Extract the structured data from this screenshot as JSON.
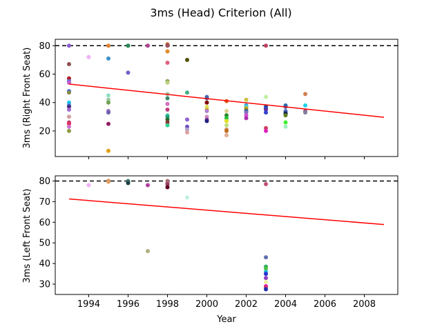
{
  "chart_data": {
    "type": "scatter",
    "title": "3ms (Head) Criterion (All)",
    "xlabel": "Year",
    "x_ticks": [
      1994,
      1996,
      1998,
      2000,
      2002,
      2004,
      2006,
      2008
    ],
    "subplots": [
      {
        "ylabel": "3ms (Right Front Seat)",
        "xlim": [
          1992.3,
          2009.7
        ],
        "ylim": [
          2,
          84.5
        ],
        "y_ticks": [
          20,
          40,
          60,
          80
        ],
        "reference_line": {
          "y": 80,
          "style": "dashed",
          "color": "#000000"
        },
        "trend_line": {
          "x": [
            1993,
            2009
          ],
          "y": [
            53,
            29.6
          ],
          "color": "#ff0000"
        },
        "points": [
          {
            "x": 1993,
            "y": 80,
            "c": "#8a5cd0"
          },
          {
            "x": 1993,
            "y": 67,
            "c": "#8b4f4f"
          },
          {
            "x": 1993,
            "y": 57,
            "c": "#b0202a"
          },
          {
            "x": 1993,
            "y": 55,
            "c": "#5a6ad8"
          },
          {
            "x": 1993,
            "y": 54,
            "c": "#c25fd1"
          },
          {
            "x": 1993,
            "y": 48,
            "c": "#2f6ad6"
          },
          {
            "x": 1993,
            "y": 47,
            "c": "#8a8a4a"
          },
          {
            "x": 1993,
            "y": 40,
            "c": "#21c2ee"
          },
          {
            "x": 1993,
            "y": 38,
            "c": "#3c7bd1"
          },
          {
            "x": 1993,
            "y": 37,
            "c": "#4a2a7a"
          },
          {
            "x": 1993,
            "y": 35,
            "c": "#a06ad0"
          },
          {
            "x": 1993,
            "y": 30,
            "c": "#d0a0a0"
          },
          {
            "x": 1993,
            "y": 26,
            "c": "#b93c6a"
          },
          {
            "x": 1993,
            "y": 25,
            "c": "#e03060"
          },
          {
            "x": 1993,
            "y": 23,
            "c": "#d070d0"
          },
          {
            "x": 1993,
            "y": 20,
            "c": "#8a9a40"
          },
          {
            "x": 1994,
            "y": 72,
            "c": "#f0b0f8"
          },
          {
            "x": 1995,
            "y": 80,
            "c": "#e08030"
          },
          {
            "x": 1995,
            "y": 71,
            "c": "#3a90c8"
          },
          {
            "x": 1995,
            "y": 45,
            "c": "#90e0c0"
          },
          {
            "x": 1995,
            "y": 42,
            "c": "#a0c8a0"
          },
          {
            "x": 1995,
            "y": 40,
            "c": "#70a050"
          },
          {
            "x": 1995,
            "y": 34,
            "c": "#9070c0"
          },
          {
            "x": 1995,
            "y": 33,
            "c": "#7060b0"
          },
          {
            "x": 1995,
            "y": 25,
            "c": "#902060"
          },
          {
            "x": 1995,
            "y": 6,
            "c": "#e0a010"
          },
          {
            "x": 1996,
            "y": 80,
            "c": "#3a6a3a"
          },
          {
            "x": 1996,
            "y": 80,
            "c": "#2a8a5a"
          },
          {
            "x": 1996,
            "y": 61,
            "c": "#7060c8"
          },
          {
            "x": 1997,
            "y": 80,
            "c": "#b04090"
          },
          {
            "x": 1998,
            "y": 81,
            "c": "#c06030"
          },
          {
            "x": 1998,
            "y": 80,
            "c": "#a05060"
          },
          {
            "x": 1998,
            "y": 76,
            "c": "#e08a2a"
          },
          {
            "x": 1998,
            "y": 68,
            "c": "#e06080"
          },
          {
            "x": 1998,
            "y": 55,
            "c": "#80a050"
          },
          {
            "x": 1998,
            "y": 54,
            "c": "#c0d080"
          },
          {
            "x": 1998,
            "y": 46,
            "c": "#a0c0a0"
          },
          {
            "x": 1998,
            "y": 43,
            "c": "#3a8a6a"
          },
          {
            "x": 1998,
            "y": 39,
            "c": "#d070c0"
          },
          {
            "x": 1998,
            "y": 35,
            "c": "#c04080"
          },
          {
            "x": 1998,
            "y": 31,
            "c": "#50d0a0"
          },
          {
            "x": 1998,
            "y": 30,
            "c": "#20a080"
          },
          {
            "x": 1998,
            "y": 28,
            "c": "#2a6a2a"
          },
          {
            "x": 1998,
            "y": 26,
            "c": "#903030"
          },
          {
            "x": 1998,
            "y": 24,
            "c": "#30d090"
          },
          {
            "x": 1999,
            "y": 70,
            "c": "#505000"
          },
          {
            "x": 1999,
            "y": 47,
            "c": "#40b080"
          },
          {
            "x": 1999,
            "y": 28,
            "c": "#9060d0"
          },
          {
            "x": 1999,
            "y": 23,
            "c": "#7050c0"
          },
          {
            "x": 1999,
            "y": 21,
            "c": "#b0a0d0"
          },
          {
            "x": 1999,
            "y": 19,
            "c": "#e0a0a0"
          },
          {
            "x": 2000,
            "y": 44,
            "c": "#5070c0"
          },
          {
            "x": 2000,
            "y": 43,
            "c": "#4060a0"
          },
          {
            "x": 2000,
            "y": 40,
            "c": "#800000"
          },
          {
            "x": 2000,
            "y": 37,
            "c": "#e0e060"
          },
          {
            "x": 2000,
            "y": 35,
            "c": "#d0b020"
          },
          {
            "x": 2000,
            "y": 34,
            "c": "#b080d0"
          },
          {
            "x": 2000,
            "y": 30,
            "c": "#d090c0"
          },
          {
            "x": 2000,
            "y": 28,
            "c": "#9040a0"
          },
          {
            "x": 2000,
            "y": 27,
            "c": "#202080"
          },
          {
            "x": 2001,
            "y": 41,
            "c": "#e06020"
          },
          {
            "x": 2001,
            "y": 34,
            "c": "#e0d090"
          },
          {
            "x": 2001,
            "y": 31,
            "c": "#2a8a2a"
          },
          {
            "x": 2001,
            "y": 29,
            "c": "#20c040"
          },
          {
            "x": 2001,
            "y": 27,
            "c": "#e0e020"
          },
          {
            "x": 2001,
            "y": 24,
            "c": "#c0e080"
          },
          {
            "x": 2001,
            "y": 21,
            "c": "#d09060"
          },
          {
            "x": 2001,
            "y": 20,
            "c": "#c07020"
          },
          {
            "x": 2001,
            "y": 17,
            "c": "#e0b090"
          },
          {
            "x": 2002,
            "y": 42,
            "c": "#d0c040"
          },
          {
            "x": 2002,
            "y": 38,
            "c": "#30a0d0"
          },
          {
            "x": 2002,
            "y": 37,
            "c": "#50d0e0"
          },
          {
            "x": 2002,
            "y": 36,
            "c": "#c0b020"
          },
          {
            "x": 2002,
            "y": 35,
            "c": "#a09010"
          },
          {
            "x": 2002,
            "y": 34,
            "c": "#3060a0"
          },
          {
            "x": 2002,
            "y": 33,
            "c": "#8070c0"
          },
          {
            "x": 2002,
            "y": 31,
            "c": "#d050d0"
          },
          {
            "x": 2002,
            "y": 29,
            "c": "#b030b0"
          },
          {
            "x": 2003,
            "y": 80,
            "c": "#c04060"
          },
          {
            "x": 2003,
            "y": 44,
            "c": "#c0f0a0"
          },
          {
            "x": 2003,
            "y": 37,
            "c": "#204080"
          },
          {
            "x": 2003,
            "y": 36,
            "c": "#2050d0"
          },
          {
            "x": 2003,
            "y": 35,
            "c": "#6030a0"
          },
          {
            "x": 2003,
            "y": 33,
            "c": "#3040d0"
          },
          {
            "x": 2003,
            "y": 22,
            "c": "#d04060"
          },
          {
            "x": 2003,
            "y": 20,
            "c": "#e020c0"
          },
          {
            "x": 2004,
            "y": 38,
            "c": "#2070c0"
          },
          {
            "x": 2004,
            "y": 37,
            "c": "#4060a0"
          },
          {
            "x": 2004,
            "y": 34,
            "c": "#6070c0"
          },
          {
            "x": 2004,
            "y": 33,
            "c": "#3050a0"
          },
          {
            "x": 2004,
            "y": 32,
            "c": "#102040"
          },
          {
            "x": 2004,
            "y": 31,
            "c": "#608020"
          },
          {
            "x": 2004,
            "y": 26,
            "c": "#40f030"
          },
          {
            "x": 2004,
            "y": 23,
            "c": "#a0f0c0"
          },
          {
            "x": 2005,
            "y": 46,
            "c": "#d08050"
          },
          {
            "x": 2005,
            "y": 38,
            "c": "#20d0f0"
          },
          {
            "x": 2005,
            "y": 34,
            "c": "#a05080"
          },
          {
            "x": 2005,
            "y": 33,
            "c": "#8080a0"
          }
        ]
      },
      {
        "ylabel": "3ms (Left Front Seat)",
        "xlim": [
          1992.3,
          2009.7
        ],
        "ylim": [
          25,
          82.5
        ],
        "y_ticks": [
          30,
          40,
          50,
          60,
          70,
          80
        ],
        "reference_line": {
          "y": 80,
          "style": "dashed",
          "color": "#000000"
        },
        "trend_line": {
          "x": [
            1993,
            2009
          ],
          "y": [
            71.3,
            58.9
          ],
          "color": "#ff0000"
        },
        "points": [
          {
            "x": 1994,
            "y": 78,
            "c": "#f0b0f8"
          },
          {
            "x": 1995,
            "y": 80,
            "c": "#c07040"
          },
          {
            "x": 1995,
            "y": 79.6,
            "c": "#e0a060"
          },
          {
            "x": 1996,
            "y": 80,
            "c": "#2a8a5a"
          },
          {
            "x": 1996,
            "y": 79.5,
            "c": "#4a6a8a"
          },
          {
            "x": 1996,
            "y": 79,
            "c": "#204040"
          },
          {
            "x": 1997,
            "y": 78,
            "c": "#b040a0"
          },
          {
            "x": 1997,
            "y": 46,
            "c": "#b0b080"
          },
          {
            "x": 1998,
            "y": 80,
            "c": "#a07070"
          },
          {
            "x": 1998,
            "y": 79,
            "c": "#c06080"
          },
          {
            "x": 1998,
            "y": 78.4,
            "c": "#904060"
          },
          {
            "x": 1998,
            "y": 77,
            "c": "#600020"
          },
          {
            "x": 1999,
            "y": 72,
            "c": "#c0f0e0"
          },
          {
            "x": 2003,
            "y": 78.5,
            "c": "#c05070"
          },
          {
            "x": 2003,
            "y": 43,
            "c": "#6070b0"
          },
          {
            "x": 2003,
            "y": 38.5,
            "c": "#30b060"
          },
          {
            "x": 2003,
            "y": 37.5,
            "c": "#50c040"
          },
          {
            "x": 2003,
            "y": 36,
            "c": "#20c0d0"
          },
          {
            "x": 2003,
            "y": 35,
            "c": "#3030d0"
          },
          {
            "x": 2003,
            "y": 33,
            "c": "#9040c0"
          },
          {
            "x": 2003,
            "y": 31,
            "c": "#f0f0a0"
          },
          {
            "x": 2003,
            "y": 29,
            "c": "#e020d0"
          },
          {
            "x": 2003,
            "y": 28.5,
            "c": "#d03070"
          },
          {
            "x": 2003,
            "y": 27.5,
            "c": "#2030b0"
          }
        ]
      }
    ]
  }
}
